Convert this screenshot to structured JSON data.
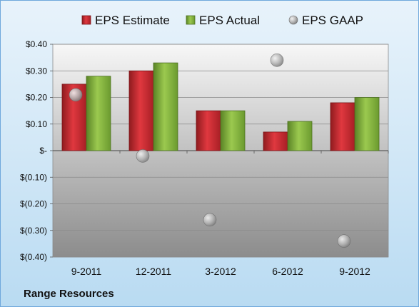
{
  "chart_data": {
    "type": "bar",
    "footer": "Range Resources",
    "categories": [
      "9-2011",
      "12-2011",
      "3-2012",
      "6-2012",
      "9-2012"
    ],
    "series": [
      {
        "name": "EPS Estimate",
        "kind": "bar",
        "color": "#c0272d",
        "values": [
          0.25,
          0.3,
          0.15,
          0.07,
          0.18
        ]
      },
      {
        "name": "EPS Actual",
        "kind": "bar",
        "color": "#7fae3a",
        "values": [
          0.28,
          0.33,
          0.15,
          0.11,
          0.2
        ]
      },
      {
        "name": "EPS GAAP",
        "kind": "marker",
        "color": "#a9a9a9",
        "values": [
          0.21,
          -0.02,
          -0.26,
          0.34,
          -0.34
        ]
      }
    ],
    "ylim": [
      -0.4,
      0.4
    ],
    "y_ticks": [
      0.4,
      0.3,
      0.2,
      0.1,
      0,
      -0.1,
      -0.2,
      -0.3,
      -0.4
    ],
    "y_tick_labels": [
      "$0.40",
      "$0.30",
      "$0.20",
      "$0.10",
      "$-",
      "$(0.10)",
      "$(0.20)",
      "$(0.30)",
      "$(0.40)"
    ],
    "grid": true,
    "legend": "top"
  }
}
